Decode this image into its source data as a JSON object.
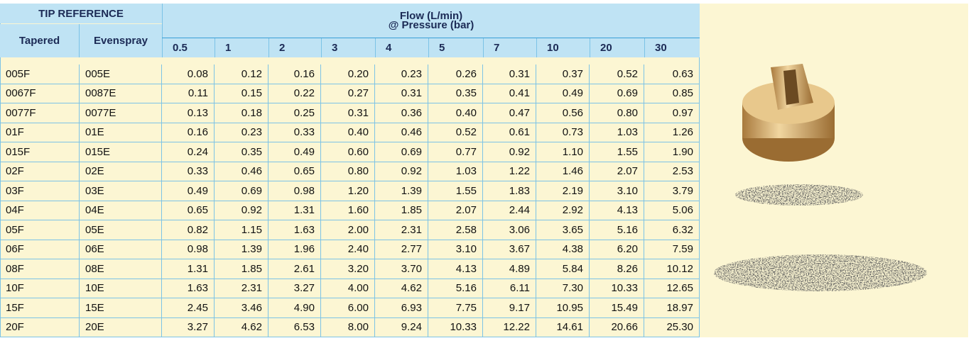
{
  "header": {
    "tip_reference": "TIP REFERENCE",
    "flow_title": "Flow (L/min)",
    "flow_subtitle": "@ Pressure (bar)",
    "tapered": "Tapered",
    "evenspray": "Evenspray"
  },
  "table": {
    "pressures": [
      "0.5",
      "1",
      "2",
      "3",
      "4",
      "5",
      "7",
      "10",
      "20",
      "30"
    ],
    "rows": [
      [
        "005F",
        "005E",
        "0.08",
        "0.12",
        "0.16",
        "0.20",
        "0.23",
        "0.26",
        "0.31",
        "0.37",
        "0.52",
        "0.63"
      ],
      [
        "0067F",
        "0087E",
        "0.11",
        "0.15",
        "0.22",
        "0.27",
        "0.31",
        "0.35",
        "0.41",
        "0.49",
        "0.69",
        "0.85"
      ],
      [
        "0077F",
        "0077E",
        "0.13",
        "0.18",
        "0.25",
        "0.31",
        "0.36",
        "0.40",
        "0.47",
        "0.56",
        "0.80",
        "0.97"
      ],
      [
        "01F",
        "01E",
        "0.16",
        "0.23",
        "0.33",
        "0.40",
        "0.46",
        "0.52",
        "0.61",
        "0.73",
        "1.03",
        "1.26"
      ],
      [
        "015F",
        "015E",
        "0.24",
        "0.35",
        "0.49",
        "0.60",
        "0.69",
        "0.77",
        "0.92",
        "1.10",
        "1.55",
        "1.90"
      ],
      [
        "02F",
        "02E",
        "0.33",
        "0.46",
        "0.65",
        "0.80",
        "0.92",
        "1.03",
        "1.22",
        "1.46",
        "2.07",
        "2.53"
      ],
      [
        "03F",
        "03E",
        "0.49",
        "0.69",
        "0.98",
        "1.20",
        "1.39",
        "1.55",
        "1.83",
        "2.19",
        "3.10",
        "3.79"
      ],
      [
        "04F",
        "04E",
        "0.65",
        "0.92",
        "1.31",
        "1.60",
        "1.85",
        "2.07",
        "2.44",
        "2.92",
        "4.13",
        "5.06"
      ],
      [
        "05F",
        "05E",
        "0.82",
        "1.15",
        "1.63",
        "2.00",
        "2.31",
        "2.58",
        "3.06",
        "3.65",
        "5.16",
        "6.32"
      ],
      [
        "06F",
        "06E",
        "0.98",
        "1.39",
        "1.96",
        "2.40",
        "2.77",
        "3.10",
        "3.67",
        "4.38",
        "6.20",
        "7.59"
      ],
      [
        "08F",
        "08E",
        "1.31",
        "1.85",
        "2.61",
        "3.20",
        "3.70",
        "4.13",
        "4.89",
        "5.84",
        "8.26",
        "10.12"
      ],
      [
        "10F",
        "10E",
        "1.63",
        "2.31",
        "3.27",
        "4.00",
        "4.62",
        "5.16",
        "6.11",
        "7.30",
        "10.33",
        "12.65"
      ],
      [
        "15F",
        "15E",
        "2.45",
        "3.46",
        "4.90",
        "6.00",
        "6.93",
        "7.75",
        "9.17",
        "10.95",
        "15.49",
        "18.97"
      ],
      [
        "20F",
        "20E",
        "3.27",
        "4.62",
        "6.53",
        "8.00",
        "9.24",
        "10.33",
        "12.22",
        "14.61",
        "20.66",
        "25.30"
      ]
    ]
  }
}
